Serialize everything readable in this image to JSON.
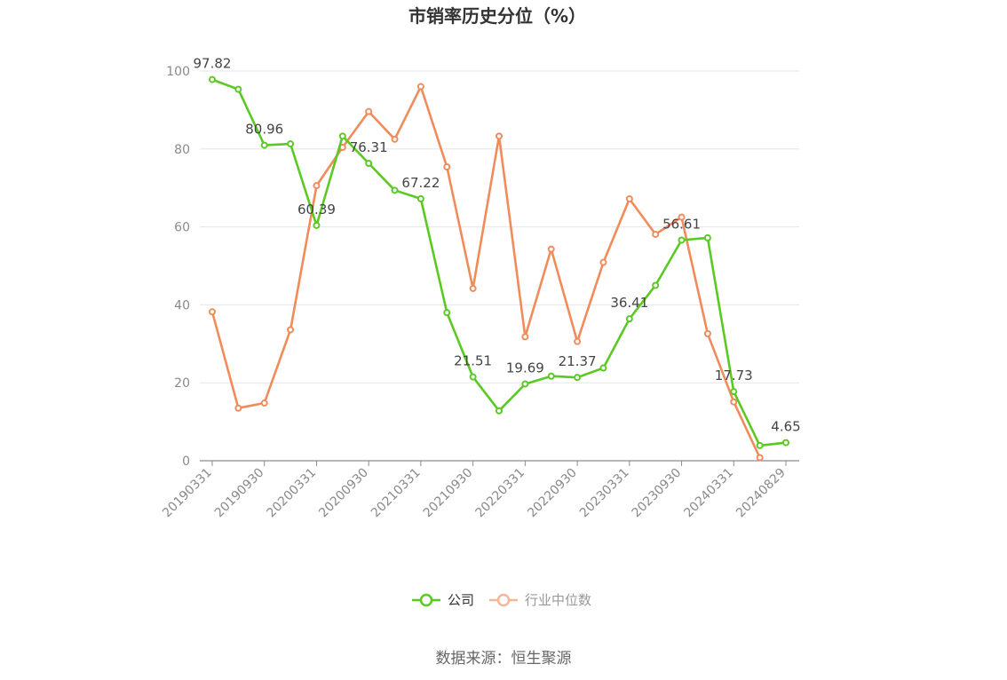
{
  "chart_data": {
    "type": "line",
    "title": "市销率历史分位（%）",
    "source": "数据来源：恒生聚源",
    "ylim": [
      0,
      100
    ],
    "yticks": [
      0,
      20,
      40,
      60,
      80,
      100
    ],
    "grid": true,
    "legend_position": "bottom",
    "x_tick_labels": [
      "20190331",
      "20190930",
      "20200331",
      "20200930",
      "20210331",
      "20210930",
      "20220331",
      "20220930",
      "20230331",
      "20230930",
      "20240331",
      "20240829"
    ],
    "x": [
      "20190331",
      "20190630",
      "20190930",
      "20191231",
      "20200331",
      "20200630",
      "20200930",
      "20201231",
      "20210331",
      "20210630",
      "20210930",
      "20211231",
      "20220331",
      "20220630",
      "20220930",
      "20221231",
      "20230331",
      "20230630",
      "20230930",
      "20231231",
      "20240331",
      "20240630",
      "20240829"
    ],
    "series": [
      {
        "name": "公司",
        "color": "#5bc924",
        "values": [
          97.82,
          95.3,
          80.96,
          81.3,
          60.39,
          83.3,
          76.31,
          69.4,
          67.22,
          38.0,
          21.51,
          12.8,
          19.69,
          21.7,
          21.37,
          23.8,
          36.41,
          45.0,
          56.61,
          57.2,
          17.73,
          3.9,
          4.65
        ],
        "labels": {
          "0": "97.82",
          "2": "80.96",
          "4": "60.39",
          "6": "76.31",
          "8": "67.22",
          "10": "21.51",
          "12": "19.69",
          "14": "21.37",
          "16": "36.41",
          "18": "56.61",
          "20": "17.73",
          "22": "4.65"
        }
      },
      {
        "name": "行业中位数",
        "color": "#f08c5a",
        "values": [
          38.2,
          13.5,
          14.8,
          33.6,
          70.6,
          80.4,
          89.6,
          82.5,
          96.0,
          75.4,
          44.2,
          83.3,
          31.8,
          54.3,
          30.6,
          50.9,
          67.2,
          58.1,
          62.5,
          32.6,
          15.1,
          0.8,
          null
        ]
      }
    ]
  }
}
